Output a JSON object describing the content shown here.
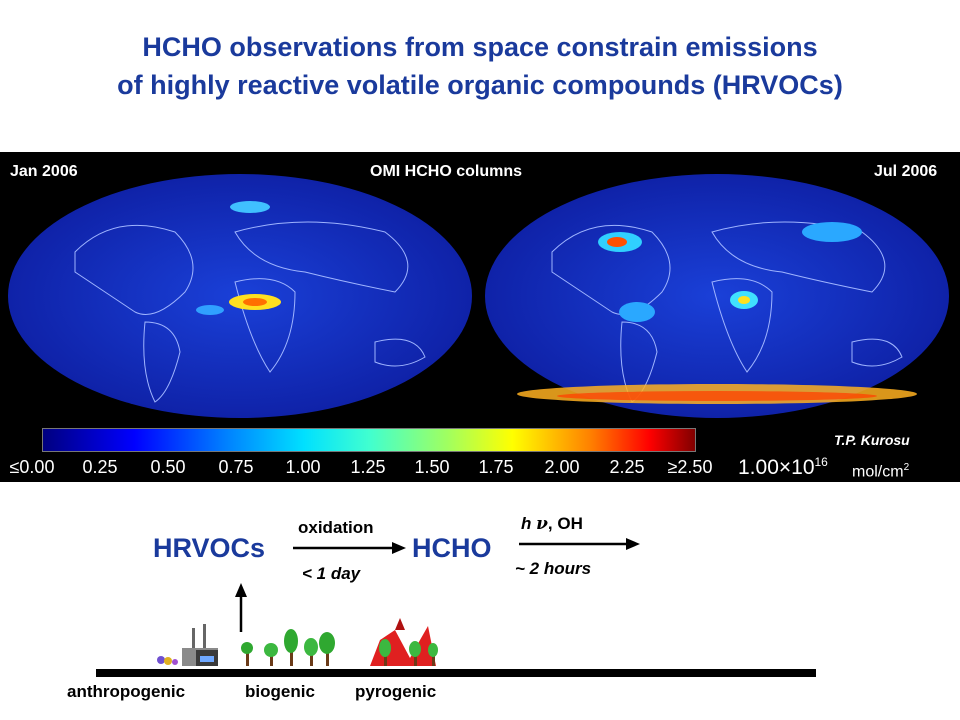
{
  "title": {
    "line1": "HCHO observations from space constrain emissions",
    "line2": "of highly reactive volatile organic compounds (HRVOCs)"
  },
  "maps": {
    "left_label": "Jan 2006",
    "center_label": "OMI HCHO columns",
    "right_label": "Jul 2006",
    "credit": "T.P. Kurosu"
  },
  "colorbar": {
    "ticks": [
      "≤0.00",
      "0.25",
      "0.50",
      "0.75",
      "1.00",
      "1.25",
      "1.50",
      "1.75",
      "2.00",
      "2.25",
      "≥2.50"
    ],
    "scale_base": "1.00×10",
    "scale_exp": "16",
    "unit_base": "mol/cm",
    "unit_exp": "2"
  },
  "diagram": {
    "hrvocs": "HRVOCs",
    "oxidation": "oxidation",
    "time1": "< 1 day",
    "hcho": "HCHO",
    "hv": "h",
    "nu": "ν",
    "oh": ", OH",
    "time2": "~ 2 hours"
  },
  "sources": {
    "anthropogenic": "anthropogenic",
    "biogenic": "biogenic",
    "pyrogenic": "pyrogenic"
  },
  "colors": {
    "title": "#1a3a9c",
    "map_bg": "#1530c0"
  }
}
